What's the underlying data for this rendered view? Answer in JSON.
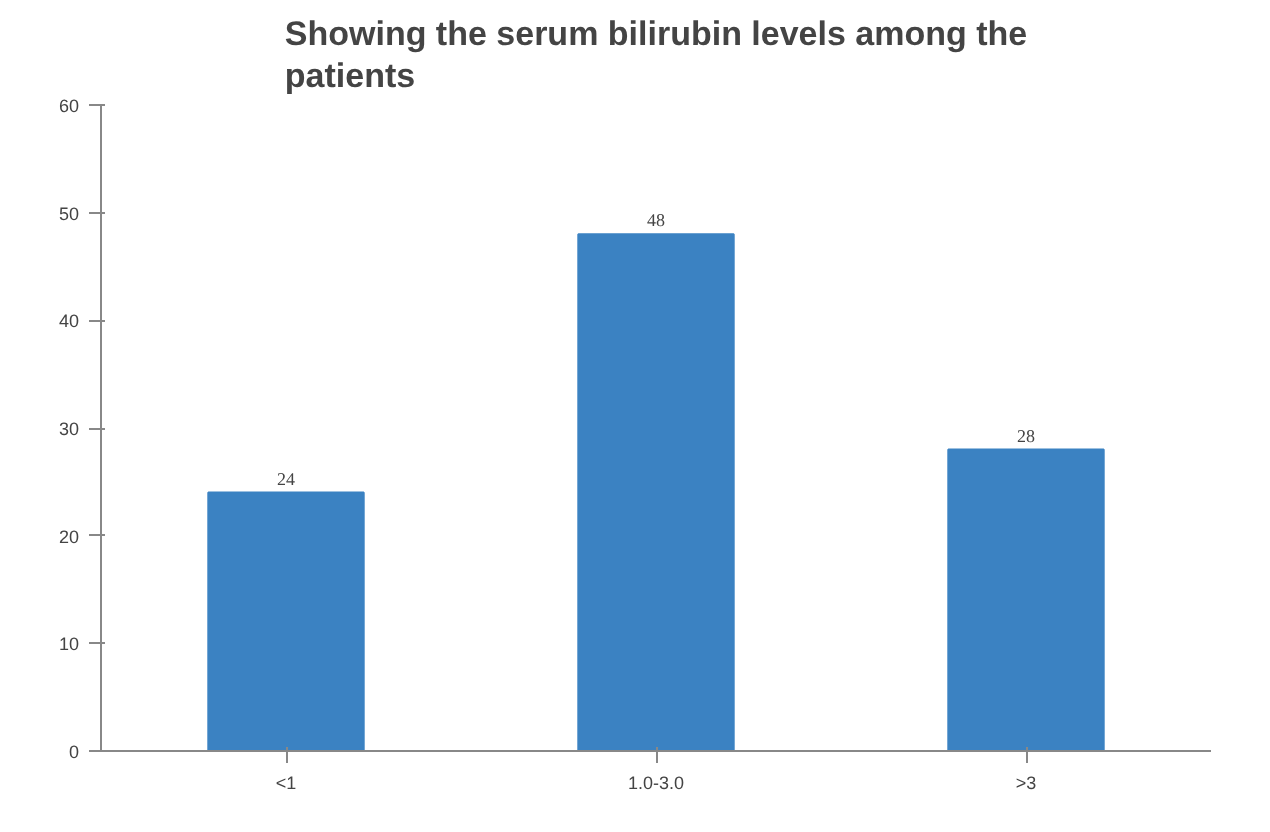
{
  "chart_data": {
    "type": "bar",
    "title": "Showing the serum bilirubin levels among the patients",
    "categories": [
      "<1",
      "1.0-3.0",
      ">3"
    ],
    "values": [
      24,
      48,
      28
    ],
    "color": "#3b82c2",
    "ylim": [
      0,
      60
    ],
    "yticks": [
      0,
      10,
      20,
      30,
      40,
      50,
      60
    ],
    "data_labels": true,
    "grid": false
  }
}
